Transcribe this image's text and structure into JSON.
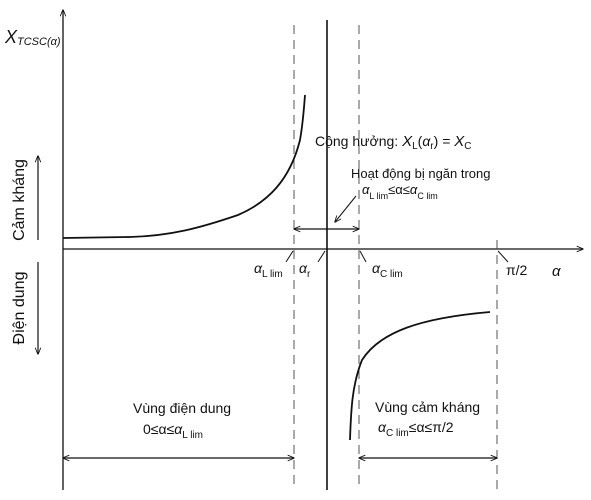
{
  "y_axis": {
    "label_main": "X",
    "label_sub": "TCSC(α)",
    "upper_region": "Cảm kháng",
    "lower_region": "Điện dung"
  },
  "x_axis": {
    "symbol": "α",
    "ticks": {
      "L": {
        "main": "α",
        "sub": "L lim"
      },
      "r": {
        "main": "α",
        "sub": "r"
      },
      "C": {
        "main": "α",
        "sub": "C lim"
      },
      "pi": "π/2"
    }
  },
  "resonance": {
    "prefix": "Cộng hưởng: ",
    "X": "X",
    "L": "L",
    "open": "(",
    "alpha": "α",
    "r": "r",
    "close": ") = ",
    "C": "C"
  },
  "forbidden": {
    "line1": "Hoạt động bị ngăn trong",
    "a1": "α",
    "s1": "L lim",
    "mid": "≤α≤",
    "a2": "α",
    "s2": "C lim"
  },
  "capacitive_zone": {
    "line1": "Vùng điện dung",
    "prefix": "0",
    "mid": "≤α≤",
    "a": "α",
    "s": "L lim"
  },
  "inductive_zone": {
    "line1": "Vùng cảm kháng",
    "a": "α",
    "s": "C lim",
    "tail": "≤α≤π/2"
  }
}
